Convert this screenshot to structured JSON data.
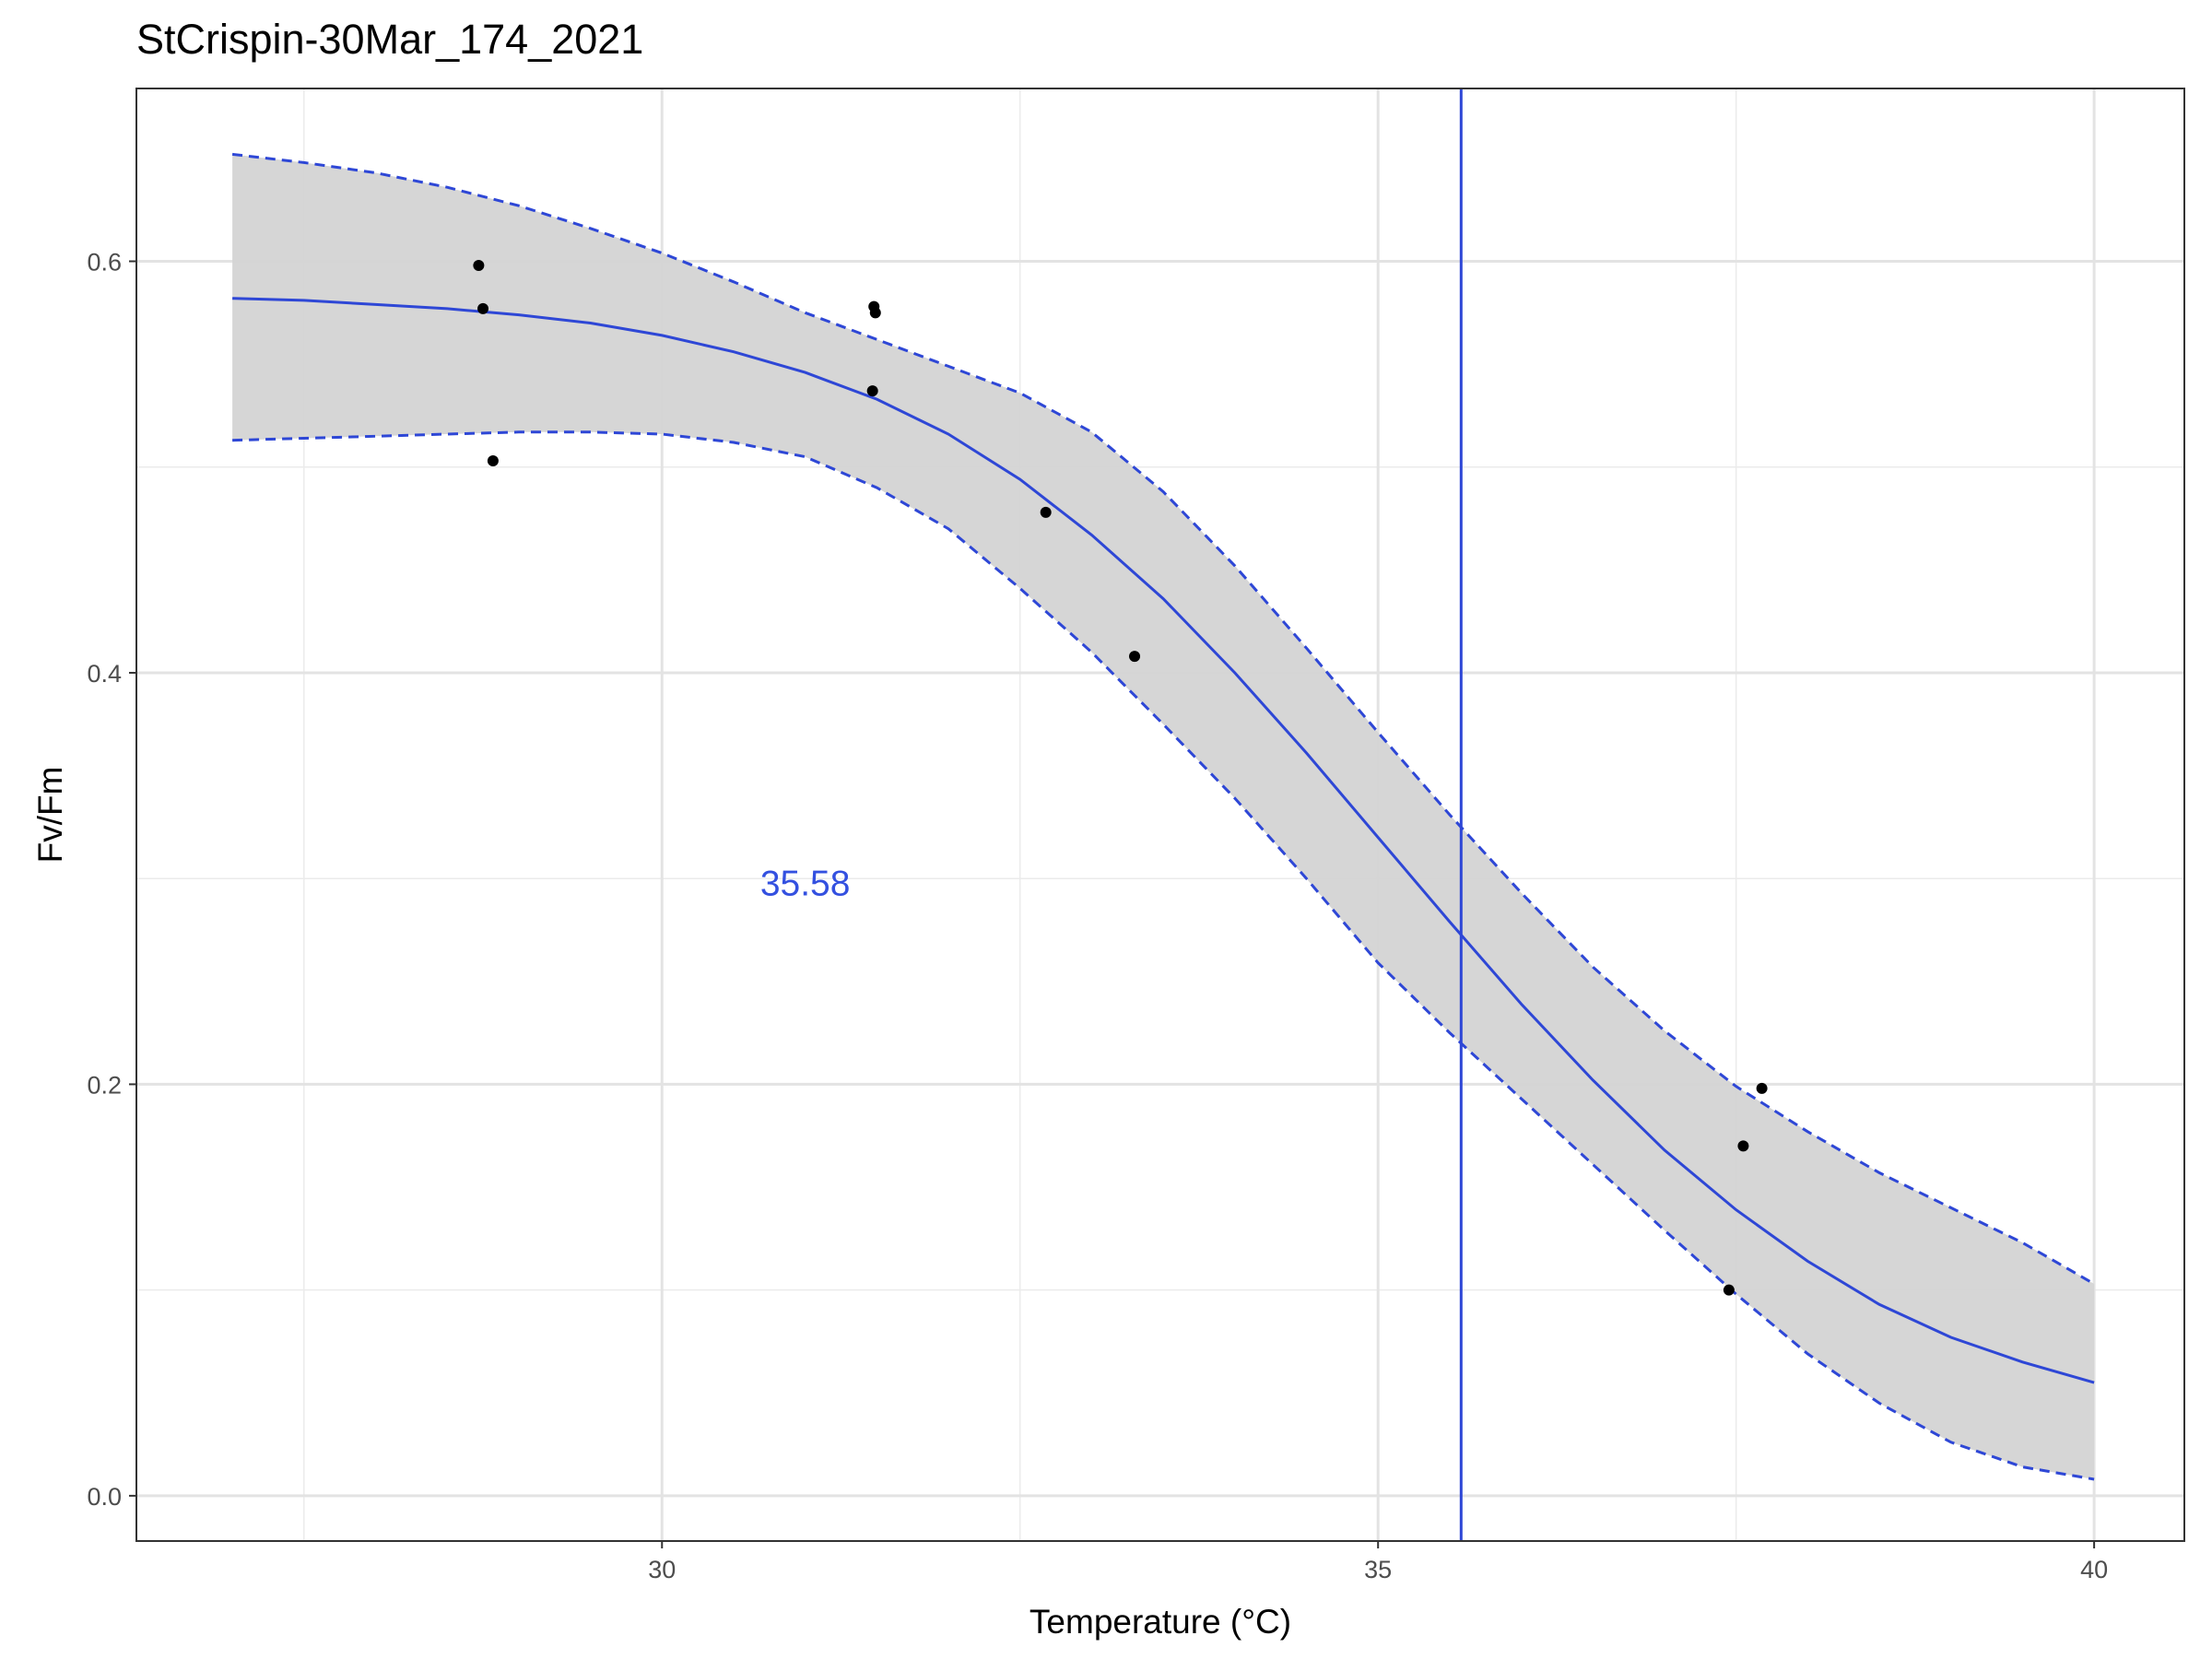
{
  "chart_data": {
    "type": "line",
    "title": "StCrispin-30Mar_174_2021",
    "xlabel": "Temperature (°C)",
    "ylabel": "Fv/Fm",
    "xlim": [
      26.33,
      40.63
    ],
    "ylim": [
      -0.022,
      0.684
    ],
    "x_ticks": [
      30,
      35,
      40
    ],
    "x_tick_labels": [
      "30",
      "35",
      "40"
    ],
    "y_ticks": [
      0.0,
      0.2,
      0.4,
      0.6
    ],
    "y_tick_labels": [
      "0.0",
      "0.2",
      "0.4",
      "0.6"
    ],
    "grid": true,
    "minor_grid": true,
    "legend": "none",
    "colors": {
      "fit": "#2e47d6",
      "band": "#d4d4d4",
      "points": "#000000",
      "annotation": "#3350e0"
    },
    "fit_curve": {
      "x": [
        27.0,
        27.5,
        28.0,
        28.5,
        29.0,
        29.5,
        30.0,
        30.5,
        31.0,
        31.5,
        32.0,
        32.5,
        33.0,
        33.5,
        34.0,
        34.5,
        35.0,
        35.5,
        36.0,
        36.5,
        37.0,
        37.5,
        38.0,
        38.5,
        39.0,
        39.5,
        40.0
      ],
      "y": [
        0.582,
        0.581,
        0.579,
        0.577,
        0.574,
        0.57,
        0.564,
        0.556,
        0.546,
        0.533,
        0.516,
        0.494,
        0.467,
        0.436,
        0.4,
        0.361,
        0.32,
        0.279,
        0.239,
        0.202,
        0.168,
        0.139,
        0.114,
        0.093,
        0.077,
        0.065,
        0.055
      ]
    },
    "upper_band": {
      "x": [
        27.0,
        27.5,
        28.0,
        28.5,
        29.0,
        29.5,
        30.0,
        30.5,
        31.0,
        31.5,
        32.0,
        32.5,
        33.0,
        33.5,
        34.0,
        34.5,
        35.0,
        35.5,
        36.0,
        36.5,
        37.0,
        37.5,
        38.0,
        38.5,
        39.0,
        39.5,
        40.0
      ],
      "y": [
        0.652,
        0.648,
        0.643,
        0.636,
        0.627,
        0.616,
        0.604,
        0.59,
        0.575,
        0.562,
        0.549,
        0.536,
        0.517,
        0.488,
        0.452,
        0.412,
        0.371,
        0.331,
        0.293,
        0.257,
        0.226,
        0.199,
        0.177,
        0.157,
        0.14,
        0.123,
        0.103
      ]
    },
    "lower_band": {
      "x": [
        27.0,
        27.5,
        28.0,
        28.5,
        29.0,
        29.5,
        30.0,
        30.5,
        31.0,
        31.5,
        32.0,
        32.5,
        33.0,
        33.5,
        34.0,
        34.5,
        35.0,
        35.5,
        36.0,
        36.5,
        37.0,
        37.5,
        38.0,
        38.5,
        39.0,
        39.5,
        40.0
      ],
      "y": [
        0.513,
        0.514,
        0.515,
        0.516,
        0.517,
        0.517,
        0.516,
        0.512,
        0.505,
        0.49,
        0.47,
        0.441,
        0.41,
        0.375,
        0.339,
        0.3,
        0.259,
        0.225,
        0.193,
        0.161,
        0.129,
        0.098,
        0.069,
        0.045,
        0.026,
        0.014,
        0.008
      ]
    },
    "points": {
      "x": [
        28.72,
        28.75,
        28.82,
        31.48,
        31.49,
        31.47,
        32.68,
        33.3,
        37.45,
        37.55,
        37.68
      ],
      "y": [
        0.598,
        0.577,
        0.503,
        0.578,
        0.575,
        0.537,
        0.478,
        0.408,
        0.1,
        0.17,
        0.198
      ]
    },
    "vline": {
      "x": 35.58
    },
    "annotations": [
      {
        "text": "35.58",
        "x": 31.0,
        "y": 0.298
      }
    ]
  }
}
